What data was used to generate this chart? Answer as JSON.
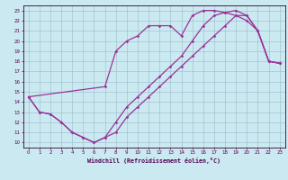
{
  "xlabel": "Windchill (Refroidissement éolien,°C)",
  "xlim": [
    -0.5,
    23.5
  ],
  "ylim": [
    9.5,
    23.5
  ],
  "xticks": [
    0,
    1,
    2,
    3,
    4,
    5,
    6,
    7,
    8,
    9,
    10,
    11,
    12,
    13,
    14,
    15,
    16,
    17,
    18,
    19,
    20,
    21,
    22,
    23
  ],
  "yticks": [
    10,
    11,
    12,
    13,
    14,
    15,
    16,
    17,
    18,
    19,
    20,
    21,
    22,
    23
  ],
  "bg_color": "#cbe9f0",
  "line_color": "#993399",
  "grid_color": "#99bbcc",
  "curve1_x": [
    0,
    1,
    2,
    3,
    4,
    5,
    6,
    7,
    8,
    9,
    10,
    11,
    12,
    13,
    14,
    15,
    16,
    17,
    18,
    19,
    20,
    21,
    22,
    23
  ],
  "curve1_y": [
    14.5,
    13.0,
    12.8,
    12.0,
    11.0,
    10.5,
    10.0,
    10.5,
    11.0,
    12.5,
    13.5,
    14.5,
    15.5,
    16.5,
    17.5,
    18.5,
    19.5,
    20.5,
    21.5,
    22.5,
    22.5,
    21.0,
    18.0,
    17.8
  ],
  "curve2_x": [
    0,
    7,
    8,
    9,
    10,
    11,
    12,
    13,
    14,
    15,
    16,
    17,
    18,
    19,
    20,
    21,
    22,
    23
  ],
  "curve2_y": [
    14.5,
    15.5,
    19.0,
    20.0,
    20.5,
    21.5,
    21.5,
    21.5,
    20.5,
    22.5,
    23.0,
    23.0,
    22.8,
    22.5,
    22.0,
    21.0,
    18.0,
    17.8
  ],
  "curve3_x": [
    0,
    1,
    2,
    3,
    4,
    5,
    6,
    7,
    8,
    9,
    10,
    11,
    12,
    13,
    14,
    15,
    16,
    17,
    18,
    19,
    20,
    21,
    22,
    23
  ],
  "curve3_y": [
    14.5,
    13.0,
    12.8,
    12.0,
    11.0,
    10.5,
    10.0,
    10.5,
    12.0,
    13.5,
    14.5,
    15.5,
    16.5,
    17.5,
    18.5,
    20.0,
    21.5,
    22.5,
    22.8,
    23.0,
    22.5,
    21.0,
    18.0,
    17.8
  ]
}
